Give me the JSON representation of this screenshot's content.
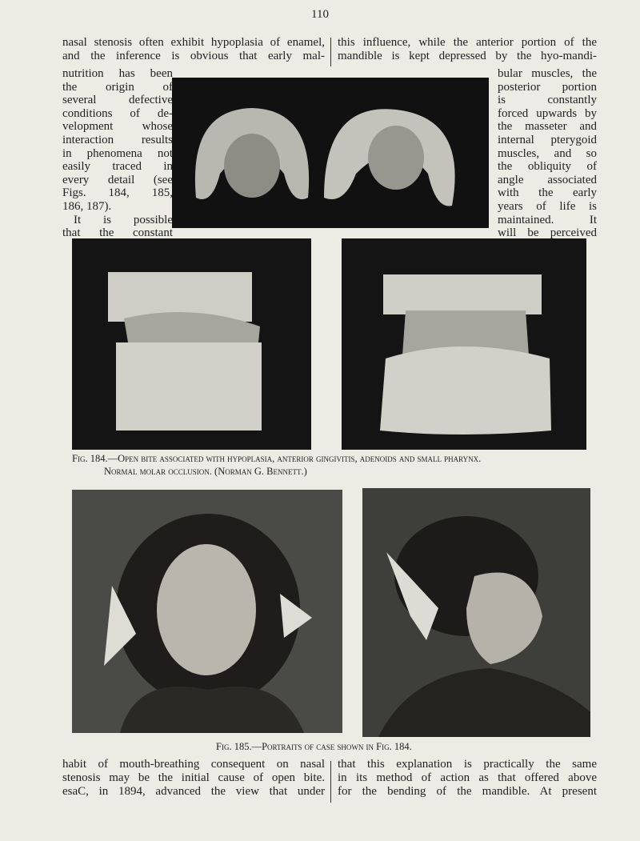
{
  "header": {
    "page_number": "110"
  },
  "top_text": {
    "left_lines": [
      "nasal stenosis often exhibit hypoplasia of enamel,",
      "and the inference is obvious that early mal-",
      "nutrition has been",
      "the origin of",
      "several defective",
      "conditions of de-",
      "velopment whose",
      "interaction results",
      "in phenomena not",
      "easily traced in",
      "every detail (see",
      "Figs. 184, 185,",
      "186, 187).",
      "It is possible",
      "that the constant"
    ],
    "right_lines": [
      "this influence, while the anterior portion of the",
      "mandible is kept depressed by the hyo-mandi-",
      "bular muscles, the",
      "posterior portion",
      "is constantly",
      "forced upwards by",
      "the masseter and",
      "internal pterygoid",
      "muscles, and so",
      "the obliquity of",
      "angle associated",
      "with the early",
      "years of life is",
      "maintained. It",
      "will be perceived"
    ]
  },
  "figure_184": {
    "caption_lines": [
      "Fig. 184.—Open bite associated with hypoplasia, anterior gingivitis, adenoids and small pharynx.",
      "Normal molar occlusion. (Norman G. Bennett.)"
    ]
  },
  "figure_185": {
    "caption": "Fig. 185.—Portraits of case shown in Fig. 184."
  },
  "bottom_text": {
    "left_lines": [
      "habit of mouth-breathing consequent on nasal",
      "stenosis may be the initial cause of open bite.",
      "esaC, in 1894, advanced the view that under"
    ],
    "right_lines": [
      "that this explanation is practically the same",
      "in its method of action as that offered above",
      "for the bending of the mandible. At present"
    ]
  }
}
